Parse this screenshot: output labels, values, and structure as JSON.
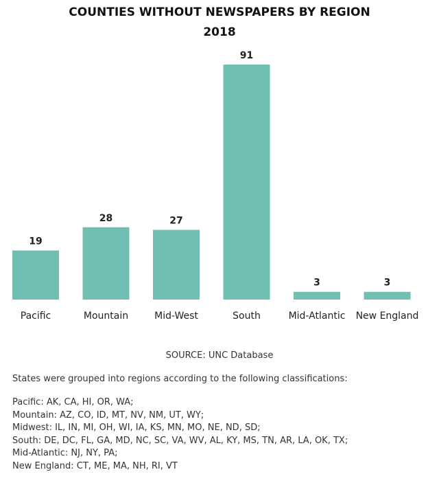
{
  "title_line1": "COUNTIES WITHOUT NEWSPAPERS BY REGION",
  "title_line2": "2018",
  "source": "SOURCE: UNC Database",
  "note_intro": "States were grouped into regions according to the following classifications:",
  "classifications": [
    "Pacific: AK, CA, HI, OR, WA;",
    "Mountain: AZ, CO, ID, MT, NV, NM, UT, WY;",
    "Midwest: IL, IN, MI, OH, WI, IA, KS, MN, MO, NE, ND, SD;",
    "South: DE, DC, FL, GA, MD, NC, SC, VA, WV, AL, KY, MS, TN, AR, LA, OK, TX;",
    "Mid-Atlantic: NJ, NY, PA;",
    "New England: CT, ME, MA, NH, RI, VT"
  ],
  "chart_data": {
    "type": "bar",
    "title": "COUNTIES WITHOUT NEWSPAPERS BY REGION 2018",
    "categories": [
      "Pacific",
      "Mountain",
      "Mid-West",
      "South",
      "Mid-Atlantic",
      "New England"
    ],
    "values": [
      19,
      28,
      27,
      91,
      3,
      3
    ],
    "xlabel": "",
    "ylabel": "",
    "ylim": [
      0,
      91
    ],
    "grid": false,
    "legend": "none",
    "bar_color": "#71bfb2",
    "data_labels": true
  }
}
